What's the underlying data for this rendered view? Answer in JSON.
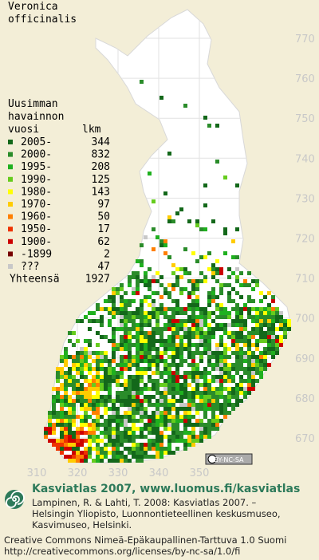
{
  "title_lines": [
    "Veronica",
    "officinalis"
  ],
  "legend": {
    "header_lines": [
      "Uusimman",
      "havainnon",
      "vuosi"
    ],
    "count_header": "lkm",
    "rows": [
      {
        "label": "2005-",
        "count": 344,
        "color": "#13681a"
      },
      {
        "label": "2000-",
        "count": 832,
        "color": "#2a8c2a"
      },
      {
        "label": "1995-",
        "count": 208,
        "color": "#1fb01f"
      },
      {
        "label": "1990-",
        "count": 125,
        "color": "#66cc1e"
      },
      {
        "label": "1980-",
        "count": 143,
        "color": "#ffff00"
      },
      {
        "label": "1970-",
        "count": 97,
        "color": "#ffcc00"
      },
      {
        "label": "1960-",
        "count": 50,
        "color": "#ff7f00"
      },
      {
        "label": "1950-",
        "count": 17,
        "color": "#ee3300"
      },
      {
        "label": "1900-",
        "count": 62,
        "color": "#cc0000"
      },
      {
        "label": "-1899",
        "count": 2,
        "color": "#770000"
      },
      {
        "label": "???",
        "count": 47,
        "color": "#c8c8c8"
      }
    ],
    "total_label": "Yhteensä",
    "total": 1927
  },
  "grid": {
    "north": [
      770,
      760,
      750,
      740,
      730,
      720,
      710,
      700,
      690,
      680,
      670
    ],
    "east": [
      310,
      320,
      330,
      340,
      350
    ]
  },
  "badge": "BY-NC-SA",
  "footer": {
    "title": "Kasviatlas 2007, www.luomus.fi/kasviatlas",
    "citation": [
      "Lampinen, R. & Lahti, T. 2008: Kasviatlas 2007. –",
      "Helsingin Yliopisto, Luonnontieteellinen keskusmuseo,",
      "Kasvimuseo, Helsinki."
    ],
    "license": [
      "Creative Commons Nimeä-Epäkaupallinen-Tarttuva 1.0 Suomi",
      "http://creativecommons.org/licenses/by-nc-sa/1.0/fi"
    ]
  }
}
